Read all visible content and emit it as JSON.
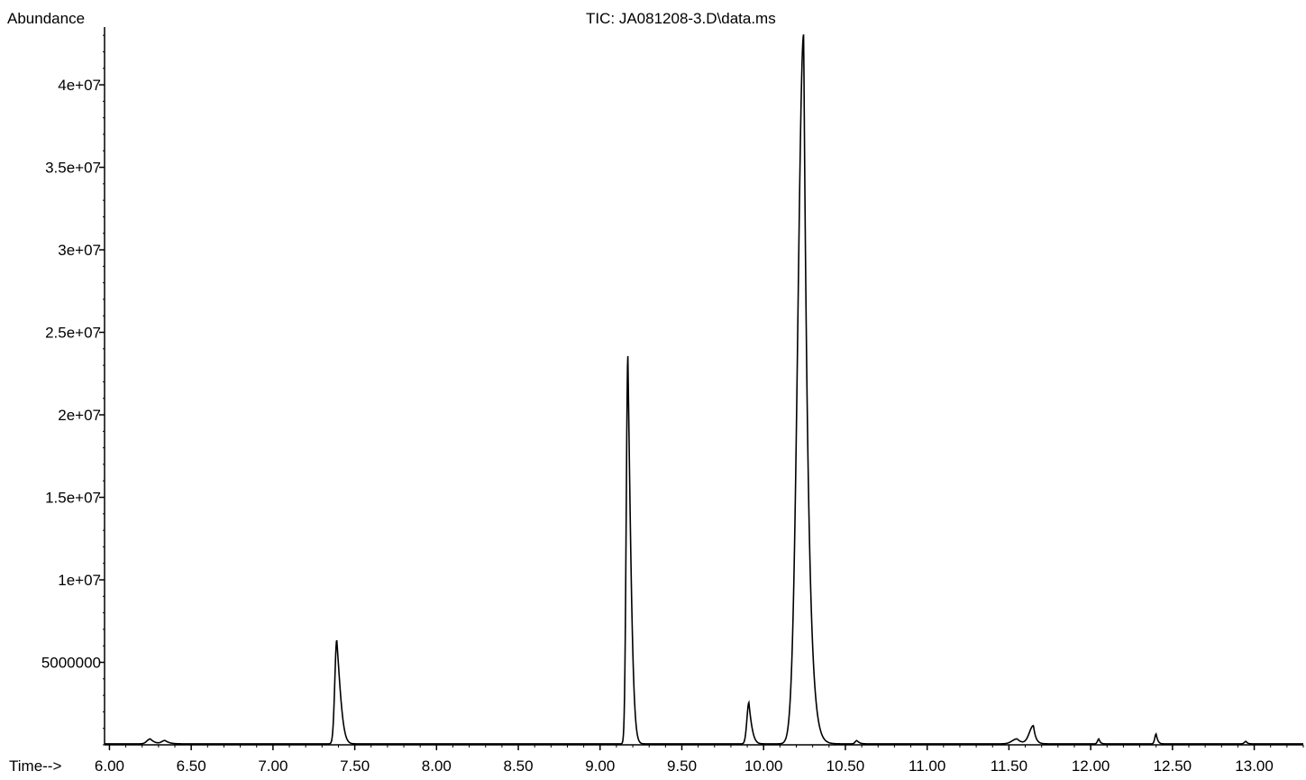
{
  "chart_data": {
    "type": "line",
    "title": "TIC: JA081208-3.D\\data.ms",
    "ylabel": "Abundance",
    "xlabel": "Time-->",
    "x_ticks": [
      "6.00",
      "6.50",
      "7.00",
      "7.50",
      "8.00",
      "8.50",
      "9.00",
      "9.50",
      "10.00",
      "10.50",
      "11.00",
      "11.50",
      "12.00",
      "12.50",
      "13.00"
    ],
    "x_tick_values": [
      6.0,
      6.5,
      7.0,
      7.5,
      8.0,
      8.5,
      9.0,
      9.5,
      10.0,
      10.5,
      11.0,
      11.5,
      12.0,
      12.5,
      13.0
    ],
    "y_ticks": [
      "5000000",
      "1e+07",
      "1.5e+07",
      "2e+07",
      "2.5e+07",
      "3e+07",
      "3.5e+07",
      "4e+07"
    ],
    "y_tick_values": [
      5000000,
      10000000,
      15000000,
      20000000,
      25000000,
      30000000,
      35000000,
      40000000
    ],
    "xlim": [
      5.97,
      13.3
    ],
    "ylim": [
      0,
      43500000
    ],
    "grid": false,
    "legend": "none",
    "line_color": "#000000",
    "series": [
      {
        "peaks": [
          {
            "t": 6.25,
            "h": 300000,
            "w": 0.02,
            "tail": 0.03
          },
          {
            "t": 6.34,
            "h": 200000,
            "w": 0.02,
            "tail": 0.03
          },
          {
            "t": 7.39,
            "h": 6300000,
            "w": 0.012,
            "tail": 0.045
          },
          {
            "t": 9.17,
            "h": 23500000,
            "w": 0.01,
            "tail": 0.035
          },
          {
            "t": 9.91,
            "h": 2500000,
            "w": 0.012,
            "tail": 0.025
          },
          {
            "t": 10.245,
            "h": 43000000,
            "w": 0.035,
            "tail": 0.03
          },
          {
            "t": 10.57,
            "h": 200000,
            "w": 0.01,
            "tail": 0.02
          },
          {
            "t": 11.55,
            "h": 300000,
            "w": 0.03,
            "tail": 0.03
          },
          {
            "t": 11.65,
            "h": 1100000,
            "w": 0.025,
            "tail": 0.015
          },
          {
            "t": 12.05,
            "h": 300000,
            "w": 0.008,
            "tail": 0.01
          },
          {
            "t": 12.4,
            "h": 600000,
            "w": 0.008,
            "tail": 0.012
          },
          {
            "t": 12.95,
            "h": 150000,
            "w": 0.01,
            "tail": 0.01
          }
        ]
      }
    ]
  }
}
